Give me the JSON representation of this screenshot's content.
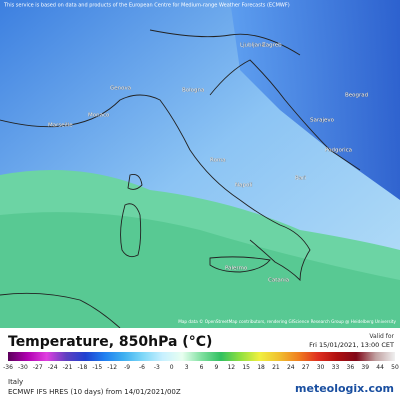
{
  "header": {
    "notice": "This service is based on data and products of the European Centre for Medium-range Weather Forecasts (ECMWF)"
  },
  "map": {
    "cities": [
      "Ljubljana",
      "Zagreb",
      "Beograd",
      "Sarajevo",
      "Podgorica",
      "Genova",
      "Bologna",
      "Monaco",
      "Marseille",
      "Roma",
      "Napoli",
      "Bari",
      "Palermo",
      "Catania"
    ],
    "attribution": "Map data © OpenStreetMap contributors, rendering GIScience Research Group @ Heidelberg University"
  },
  "legend": {
    "title": "Temperature, 850hPa (°C)",
    "valid_label": "Valid for",
    "valid_time": "Fri 15/01/2021, 13:00 CET",
    "ticks": [
      -36,
      -30,
      -27,
      -24,
      -21,
      -18,
      -15,
      -12,
      -9,
      -6,
      -3,
      0,
      3,
      6,
      9,
      12,
      15,
      18,
      21,
      24,
      27,
      30,
      33,
      36,
      39,
      44,
      50
    ]
  },
  "footer": {
    "region": "Italy",
    "model": "ECMWF IFS HRES (10 days) from 14/01/2021/00Z",
    "brand": "meteologix.com"
  }
}
